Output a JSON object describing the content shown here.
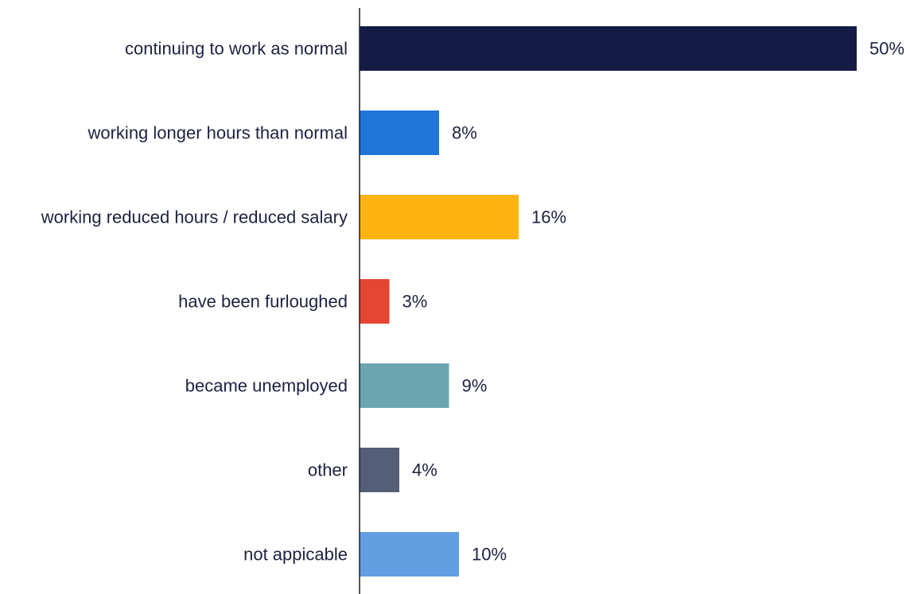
{
  "chart_data": {
    "type": "bar",
    "orientation": "horizontal",
    "categories": [
      "continuing to work as normal",
      "working longer hours than normal",
      "working reduced hours / reduced salary",
      "have been furloughed",
      "became unemployed",
      "other",
      "not appicable"
    ],
    "values": [
      50,
      8,
      16,
      3,
      9,
      4,
      10
    ],
    "value_labels": [
      "50%",
      "8%",
      "16%",
      "3%",
      "9%",
      "4%",
      "10%"
    ],
    "colors": [
      "#141c45",
      "#2075d9",
      "#fdb312",
      "#e54533",
      "#6aa5b0",
      "#555e78",
      "#639ee2"
    ],
    "xlim": [
      0,
      50
    ],
    "title": "",
    "xlabel": "",
    "ylabel": "",
    "grid": false,
    "legend": "none",
    "unit": "%"
  }
}
